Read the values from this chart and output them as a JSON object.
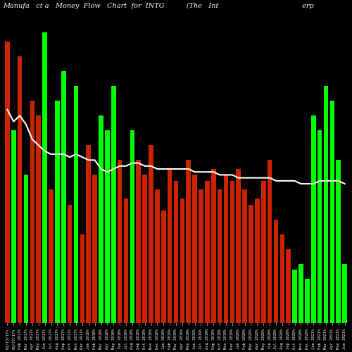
{
  "title": "Manufa   ct a   Money  Flow   Chart  for  INTG          (The   Int                                      erp",
  "background_color": "#000000",
  "categories": [
    "01/13/17%",
    "01/27/17%",
    "Feb 2017%",
    "Mar 2017%",
    "Apr 2017%",
    "May 2017%",
    "Jun 2017%",
    "Jul 2017%",
    "Aug 2017%",
    "Sep 2017%",
    "Oct 2017%",
    "Nov 2017%",
    "Dec 2017%",
    "Jan 2018%",
    "Feb 2018%",
    "Mar 2018%",
    "Apr 2018%",
    "May 2018%",
    "Jun 2018%",
    "Jul 2018%",
    "Aug 2018%",
    "Sep 2018%",
    "Oct 2018%",
    "Nov 2018%",
    "Dec 2018%",
    "Jan 2019%",
    "Feb 2019%",
    "Mar 2019%",
    "Apr 2019%",
    "May 2019%",
    "Jun 2019%",
    "Jul 2019%",
    "Aug 2019%",
    "Sep 2019%",
    "Oct 2019%",
    "Nov 2019%",
    "Dec 2019%",
    "Jan 2020%",
    "Feb 2020%",
    "Mar 2020%",
    "Apr 2020%",
    "May 2020%",
    "Jun 2020%",
    "Jul 2020%",
    "Aug 2020%",
    "Sep 2020%",
    "Oct 2020%",
    "Nov 2020%",
    "Dec 2020%",
    "Jan 2021%",
    "Feb 2021%",
    "Mar 2021%",
    "Apr 2021%",
    "May 2021%",
    "Jun 2021%"
  ],
  "bar_heights": [
    0.95,
    0.65,
    0.9,
    0.5,
    0.75,
    0.7,
    0.98,
    0.45,
    0.75,
    0.85,
    0.4,
    0.8,
    0.3,
    0.6,
    0.5,
    0.7,
    0.65,
    0.8,
    0.55,
    0.42,
    0.65,
    0.55,
    0.5,
    0.6,
    0.45,
    0.38,
    0.52,
    0.48,
    0.42,
    0.55,
    0.5,
    0.45,
    0.48,
    0.52,
    0.45,
    0.5,
    0.48,
    0.52,
    0.45,
    0.4,
    0.42,
    0.48,
    0.55,
    0.35,
    0.3,
    0.25,
    0.18,
    0.2,
    0.15,
    0.7,
    0.65,
    0.8,
    0.75,
    0.55,
    0.2
  ],
  "bar_colors": [
    "red",
    "green",
    "red",
    "green",
    "red",
    "red",
    "green",
    "red",
    "green",
    "green",
    "red",
    "green",
    "red",
    "red",
    "red",
    "green",
    "green",
    "green",
    "red",
    "red",
    "green",
    "red",
    "red",
    "red",
    "red",
    "red",
    "red",
    "red",
    "red",
    "red",
    "red",
    "red",
    "red",
    "red",
    "red",
    "red",
    "red",
    "red",
    "red",
    "red",
    "red",
    "red",
    "red",
    "red",
    "red",
    "red",
    "green",
    "green",
    "green",
    "green",
    "green",
    "green",
    "green",
    "green",
    "green"
  ],
  "line_values": [
    0.72,
    0.68,
    0.7,
    0.67,
    0.62,
    0.6,
    0.58,
    0.57,
    0.57,
    0.57,
    0.56,
    0.57,
    0.56,
    0.55,
    0.55,
    0.52,
    0.51,
    0.52,
    0.53,
    0.53,
    0.54,
    0.54,
    0.53,
    0.53,
    0.52,
    0.52,
    0.52,
    0.52,
    0.52,
    0.52,
    0.51,
    0.51,
    0.51,
    0.51,
    0.5,
    0.5,
    0.5,
    0.49,
    0.49,
    0.49,
    0.49,
    0.49,
    0.49,
    0.48,
    0.48,
    0.48,
    0.48,
    0.47,
    0.47,
    0.47,
    0.48,
    0.48,
    0.48,
    0.48,
    0.47
  ],
  "ylim": [
    0.0,
    1.05
  ],
  "title_fontsize": 7,
  "tick_fontsize": 4.0,
  "line_color": "#ffffff",
  "green_color": "#00ff00",
  "red_color": "#cc2200"
}
